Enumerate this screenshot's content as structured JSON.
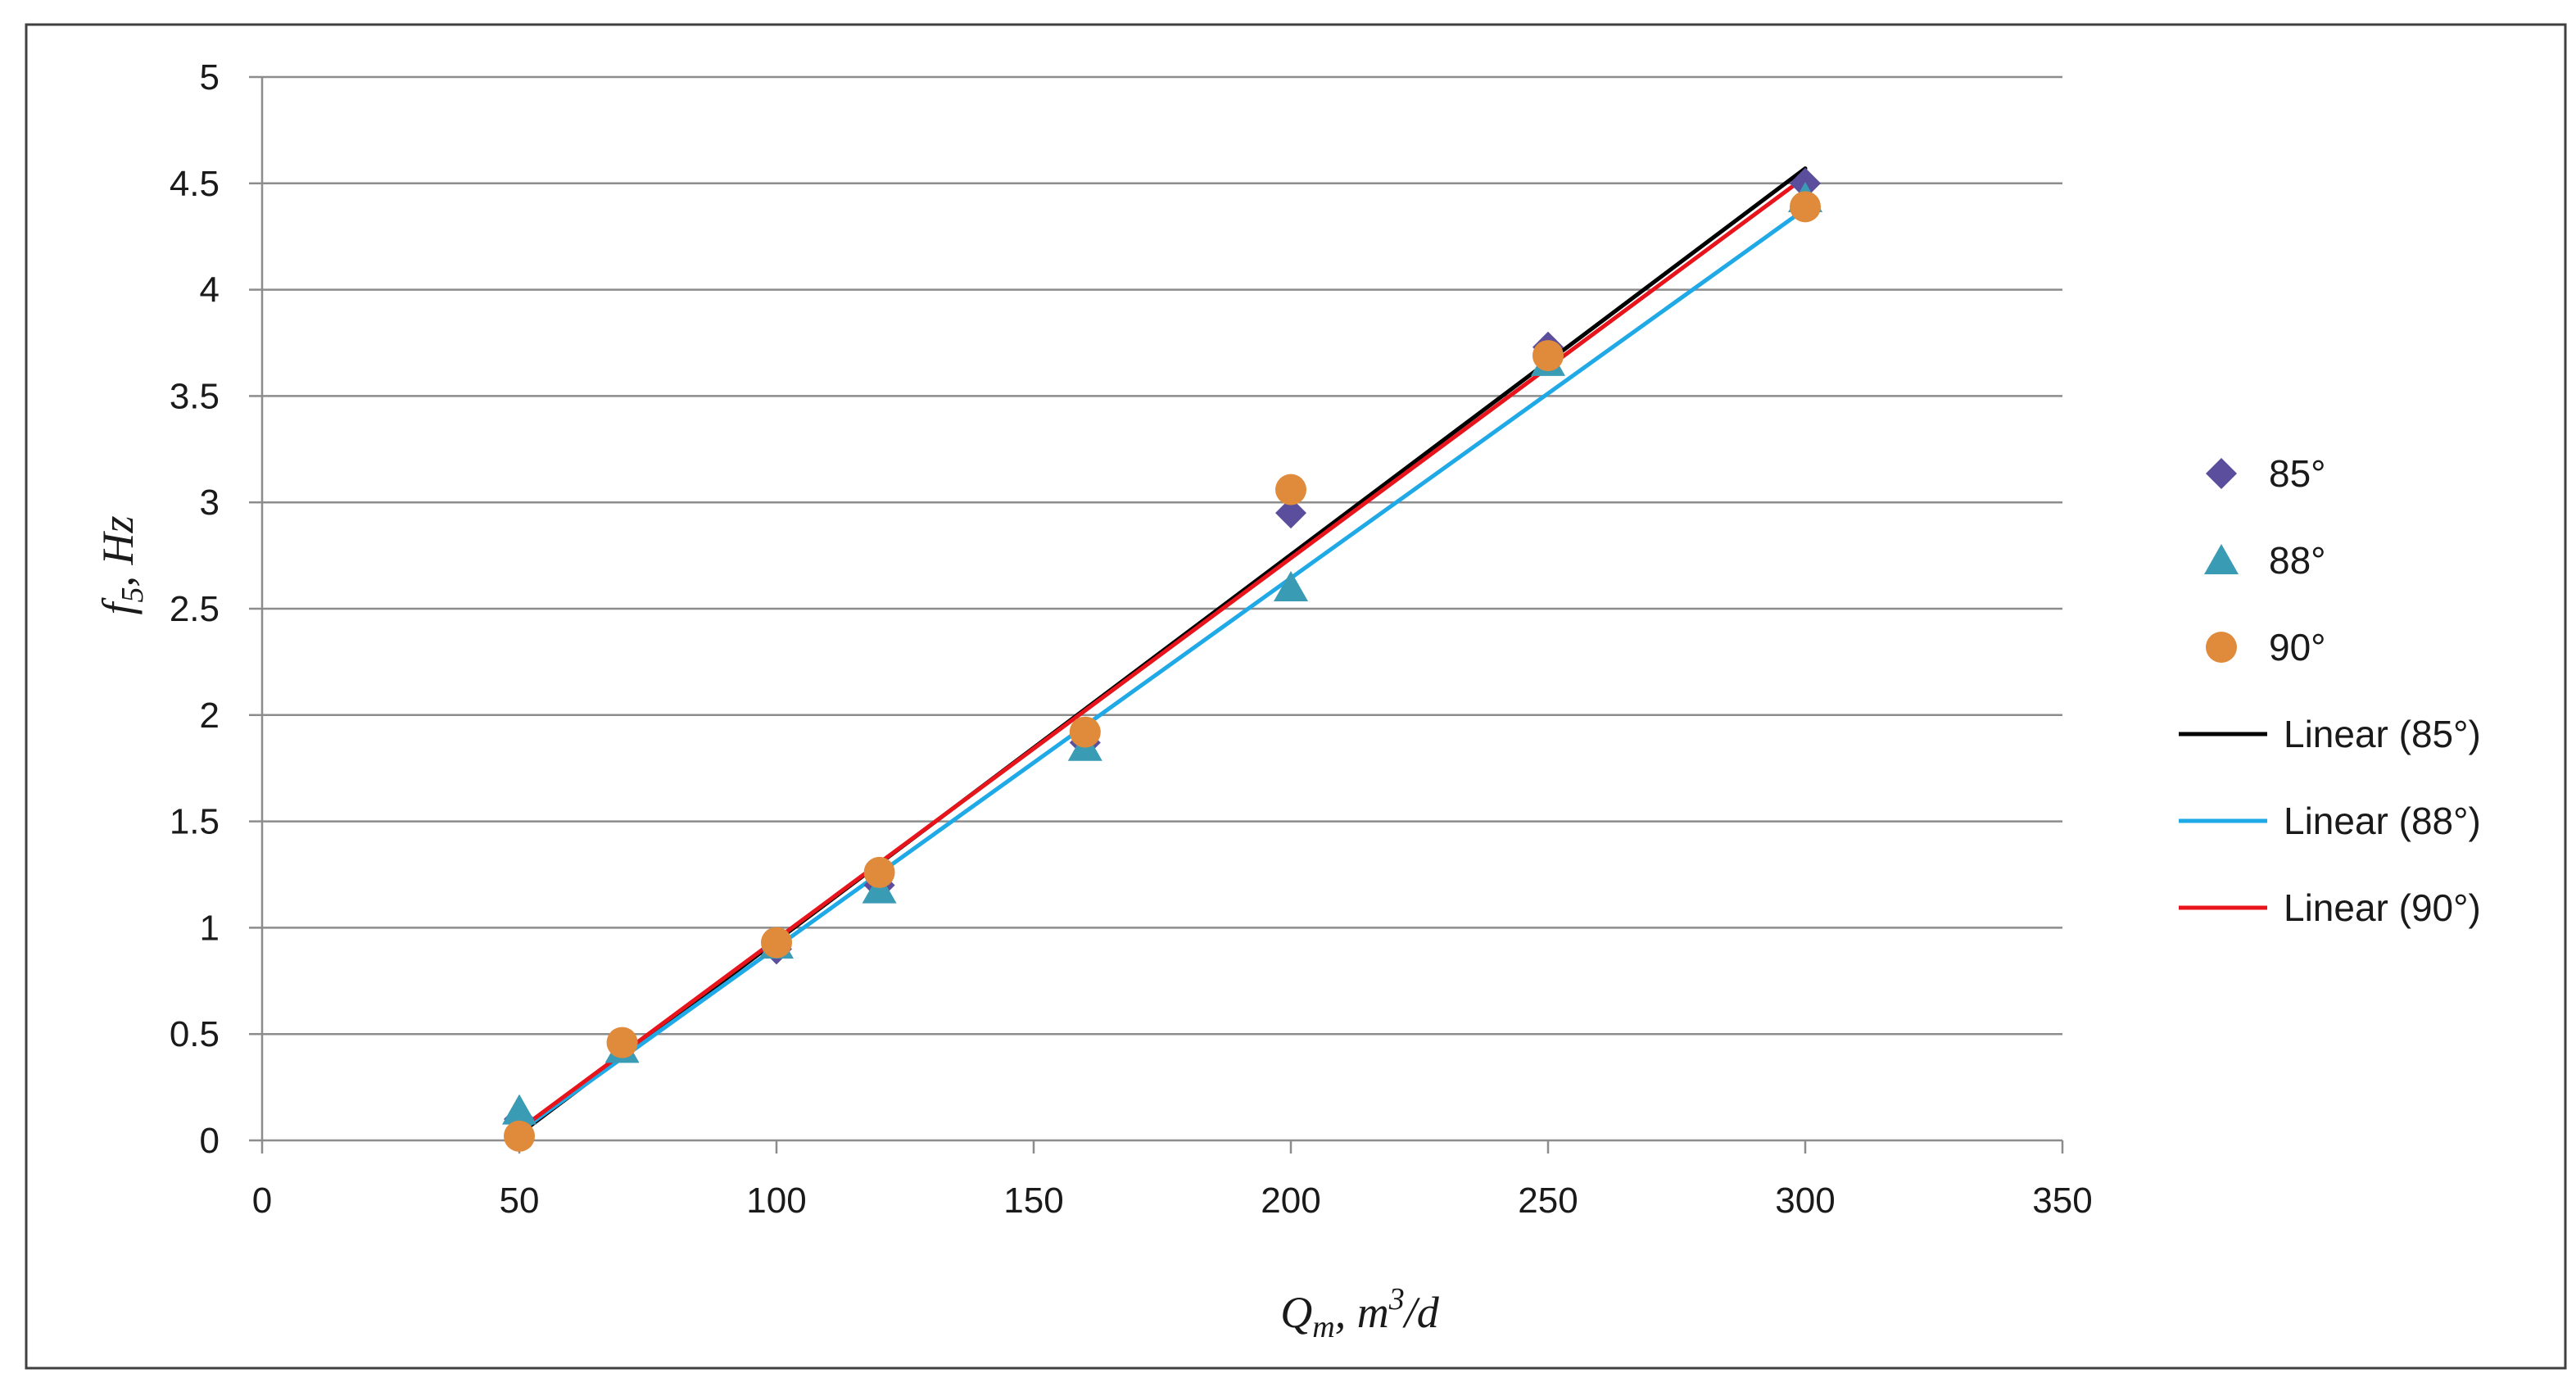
{
  "chart_data": {
    "type": "scatter",
    "title": "",
    "xlabel": "Q_m, m^3/d",
    "ylabel": "f_5, Hz",
    "xlim": [
      0,
      350
    ],
    "ylim": [
      0,
      5
    ],
    "xticks": [
      0,
      50,
      100,
      150,
      200,
      250,
      300,
      350
    ],
    "yticks": [
      0,
      0.5,
      1,
      1.5,
      2,
      2.5,
      3,
      3.5,
      4,
      4.5,
      5
    ],
    "xtick_labels": [
      "0",
      "50",
      "100",
      "150",
      "200",
      "250",
      "300",
      "350"
    ],
    "ytick_labels": [
      "0",
      "0.5",
      "1",
      "1.5",
      "2",
      "2.5",
      "3",
      "3.5",
      "4",
      "4.5",
      "5"
    ],
    "grid": "horizontal",
    "legend_position": "right",
    "series": [
      {
        "name": "85°",
        "marker": "diamond",
        "color": "#5b4e9c",
        "x": [
          50,
          70,
          100,
          120,
          160,
          200,
          250,
          300
        ],
        "y": [
          0.1,
          0.45,
          0.9,
          1.2,
          1.87,
          2.95,
          3.73,
          4.5
        ]
      },
      {
        "name": "88°",
        "marker": "triangle",
        "color": "#3a9bb5",
        "x": [
          50,
          70,
          100,
          120,
          160,
          200,
          250,
          300
        ],
        "y": [
          0.14,
          0.43,
          0.92,
          1.18,
          1.85,
          2.6,
          3.66,
          4.43
        ]
      },
      {
        "name": "90°",
        "marker": "circle",
        "color": "#e08a3c",
        "x": [
          50,
          70,
          100,
          120,
          160,
          200,
          250,
          300
        ],
        "y": [
          0.02,
          0.46,
          0.93,
          1.26,
          1.92,
          3.06,
          3.69,
          4.39
        ]
      }
    ],
    "trendlines": [
      {
        "name": "Linear (85°)",
        "color": "#000000",
        "x": [
          50,
          300
        ],
        "y": [
          0.03,
          4.57
        ]
      },
      {
        "name": "Linear (88°)",
        "color": "#1fa9e6",
        "x": [
          50,
          300
        ],
        "y": [
          0.04,
          4.38
        ]
      },
      {
        "name": "Linear (90°)",
        "color": "#e8141c",
        "x": [
          50,
          300
        ],
        "y": [
          0.05,
          4.53
        ]
      }
    ]
  }
}
